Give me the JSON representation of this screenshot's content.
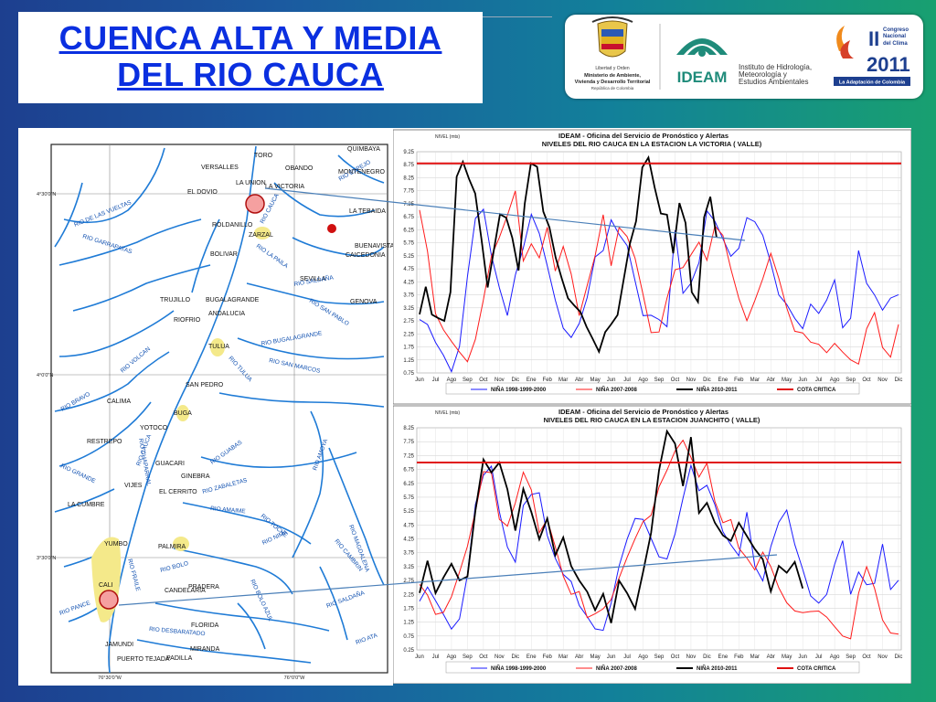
{
  "slide": {
    "title_line1": "CUENCA  ALTA Y MEDIA",
    "title_line2": "DEL RIO  CAUCA"
  },
  "logos": {
    "ministry": [
      "Libertad y Orden",
      "Ministerio de Ambiente,",
      "Vivienda y Desarrollo Territorial",
      "República de Colombia"
    ],
    "ideam_name": "IDEAM",
    "ideam_sub": [
      "Instituto de Hidrología,",
      "Meteorología y",
      "Estudios Ambientales"
    ],
    "congress": [
      "II",
      "Congreso",
      "Nacional",
      "del Clima",
      "2011",
      "La Adaptación de Colombia"
    ]
  },
  "map": {
    "coords": [
      "4°30'0\"N",
      "4°0'0\"N",
      "3°30'0\"N",
      "76°30'0\"W",
      "76°0'0\"W"
    ],
    "towns": [
      "TORO",
      "QUIMBAYA",
      "VERSALLES",
      "OBANDO",
      "MONTENEGRO",
      "LA UNION",
      "LA VICTORIA",
      "EL DOVIO",
      "LA TEBAIDA",
      "ROLDANILLO",
      "ZARZAL",
      "BUENAVISTA",
      "CAICEDONIA",
      "BOLIVAR",
      "SEVILLA",
      "TRUJILLO",
      "BUGALAGRANDE",
      "ANDALUCIA",
      "RIOFRIO",
      "GENOVA",
      "TULUA",
      "SAN PEDRO",
      "CALIMA",
      "BUGA",
      "YOTOCO",
      "RESTREPO",
      "GUACARI",
      "GINEBRA",
      "VIJES",
      "EL CERRITO",
      "LA CUMBRE",
      "YUMBO",
      "PALMIRA",
      "CALI",
      "CANDELARIA",
      "PRADERA",
      "FLORIDA",
      "JAMUNDI",
      "MIRANDA",
      "PUERTO TEJADA",
      "PADILLA"
    ],
    "rivers": [
      "RIO DE LAS VUELTAS",
      "RIO ESPEJO",
      "RIO GARRAPATAS",
      "RIO LA PAILA",
      "RIO CAUCA",
      "RIO SALDAÑA",
      "RIO SAN PABLO",
      "RIO BUGALAGRANDE",
      "RIO VOLCAN",
      "RIO TULUA",
      "RIO SAN MARCOS",
      "RIO BRAVO",
      "RIO CAUCA",
      "RIO AMOYA",
      "RIO GUABAS",
      "RIO GRANDE",
      "RIO ZABALETAS",
      "RIO AMAIME",
      "RIO TOCHE",
      "RIO NIMA",
      "RIO CAMBRIN",
      "RIO MAGDALENA",
      "RIO BOLO",
      "RIO BOLO AZUL",
      "RIO PANCE",
      "RIO DESBARATADO",
      "RIO SALDAÑA",
      "RIO ATA",
      "RIO FRAILE",
      "RIO CHAPARRAL"
    ]
  },
  "charts": {
    "legend": [
      "NIÑA 1998-1999-2000",
      "NIÑA 2007-2008",
      "NIÑA 2010-2011",
      "COTA CRITICA"
    ],
    "x_ticks": [
      "Jun",
      "Jul",
      "Ago",
      "Sep",
      "Oct",
      "Nov",
      "Dic",
      "Ene",
      "Feb",
      "Mar",
      "Abr",
      "May",
      "Jun",
      "Jul",
      "Ago",
      "Sep",
      "Oct",
      "Nov",
      "Dic",
      "Ene",
      "Feb",
      "Mar",
      "Abr",
      "May",
      "Jun",
      "Jul",
      "Ago",
      "Sep",
      "Oct",
      "Nov",
      "Dic"
    ]
  },
  "chart_data": [
    {
      "type": "line",
      "title": "IDEAM - Oficina del Servicio de Pronóstico y Alertas",
      "subtitle": "NIVELES DEL RIO CAUCA EN LA ESTACION LA VICTORIA ( VALLE)",
      "ylabel": "NIVEL (mts)",
      "ylim": [
        0.75,
        9.25
      ],
      "y_ticks": [
        "9.25",
        "8.75",
        "8.25",
        "7.75",
        "7.25",
        "6.75",
        "6.25",
        "5.75",
        "5.25",
        "4.75",
        "4.25",
        "3.75",
        "3.25",
        "2.75",
        "2.25",
        "1.75",
        "1.25",
        "0.75"
      ],
      "critical_level": 8.8,
      "series": [
        {
          "name": "NIÑA 1998-1999-2000",
          "color": "#1a1aff",
          "values": [
            2.8,
            2.4,
            1.7,
            1.4,
            1.0,
            2.0,
            4.5,
            6.5,
            6.8,
            5.2,
            4.2,
            3.2,
            4.6,
            5.4,
            6.6,
            6.0,
            5.0,
            3.8,
            2.6,
            2.0,
            2.4,
            3.5,
            5.3,
            5.7,
            6.8,
            6.0,
            5.4,
            4.1,
            3.0,
            3.2,
            3.0,
            2.5,
            6.0,
            3.6,
            4.2,
            5.2,
            7.2,
            6.6,
            5.7,
            5.0,
            5.5,
            6.9,
            6.8,
            6.1,
            4.8,
            3.5,
            3.3,
            3.0,
            2.7,
            3.5,
            2.9,
            3.3,
            4.2,
            2.6,
            3.1,
            5.6,
            4.1,
            3.5,
            3.0,
            3.7,
            4.0
          ]
        },
        {
          "name": "NIÑA 2007-2008",
          "color": "#ff1a1a",
          "values": [
            6.8,
            5.2,
            3.0,
            2.6,
            2.2,
            1.6,
            1.0,
            1.8,
            3.5,
            5.4,
            6.2,
            6.9,
            7.6,
            4.8,
            5.6,
            5.3,
            6.6,
            4.8,
            5.5,
            4.3,
            2.8,
            4.2,
            5.5,
            7.0,
            4.8,
            6.1,
            5.8,
            5.2,
            4.0,
            2.5,
            2.3,
            3.4,
            4.5,
            4.8,
            5.5,
            6.0,
            5.1,
            6.2,
            5.8,
            4.7,
            3.8,
            3.0,
            3.6,
            4.2,
            5.1,
            4.3,
            3.4,
            2.6,
            2.4,
            1.8,
            1.6,
            1.4,
            2.0,
            1.8,
            1.4,
            1.0,
            2.2,
            2.9,
            1.8,
            1.6,
            2.8
          ]
        },
        {
          "name": "NIÑA 2010-2011",
          "color": "#000000",
          "values": [
            3.0,
            4.2,
            3.1,
            2.8,
            2.6,
            3.8,
            8.4,
            9.0,
            8.2,
            7.5,
            5.8,
            4.1,
            5.6,
            6.9,
            6.6,
            5.8,
            4.7,
            7.4,
            8.9,
            8.6,
            6.8,
            6.3,
            5.3,
            4.5,
            3.6,
            3.2,
            3.0,
            2.6,
            2.2,
            1.6,
            2.2,
            2.5,
            3.0,
            4.5,
            5.8,
            6.5,
            8.5,
            9.0,
            8.0,
            7.0,
            6.8,
            5.2,
            7.2,
            6.6,
            4.0,
            3.5,
            6.6,
            7.4,
            6.0
          ]
        }
      ]
    },
    {
      "type": "line",
      "title": "IDEAM - Oficina del Servicio de Pronóstico y Alertas",
      "subtitle": "NIVELES DEL RIO CAUCA EN LA ESTACION JUANCHITO ( VALLE)",
      "ylabel": "NIVEL (mts)",
      "ylim": [
        0.25,
        8.25
      ],
      "y_ticks": [
        "8.25",
        "7.75",
        "7.25",
        "6.75",
        "6.25",
        "5.75",
        "5.25",
        "4.75",
        "4.25",
        "3.75",
        "3.25",
        "2.75",
        "2.25",
        "1.75",
        "1.25",
        "0.75",
        "0.25"
      ],
      "critical_level": 7.0,
      "series": [
        {
          "name": "NIÑA 1998-1999-2000",
          "color": "#1a1aff",
          "values": [
            2.0,
            2.3,
            1.8,
            1.5,
            1.2,
            1.6,
            3.0,
            5.3,
            6.3,
            6.8,
            5.4,
            4.2,
            3.5,
            5.3,
            5.6,
            5.8,
            4.5,
            3.8,
            3.1,
            2.6,
            1.6,
            1.3,
            1.1,
            1.2,
            2.1,
            3.2,
            4.0,
            4.8,
            5.0,
            4.5,
            3.8,
            3.5,
            4.2,
            5.5,
            6.9,
            6.2,
            6.4,
            5.5,
            4.3,
            3.8,
            3.6,
            5.4,
            3.5,
            2.8,
            3.8,
            4.6,
            5.2,
            4.2,
            3.4,
            2.3,
            1.8,
            2.0,
            3.2,
            4.3,
            2.5,
            3.2,
            2.5,
            2.4,
            3.9,
            2.5,
            3.0
          ]
        },
        {
          "name": "NIÑA 2007-2008",
          "color": "#ff1a1a",
          "values": [
            2.4,
            2.0,
            1.5,
            1.8,
            2.4,
            3.1,
            3.8,
            5.0,
            6.6,
            6.8,
            5.2,
            4.8,
            5.4,
            6.4,
            5.9,
            4.6,
            5.2,
            4.1,
            2.8,
            2.0,
            2.2,
            1.5,
            1.8,
            1.9,
            2.0,
            2.6,
            3.4,
            4.3,
            5.1,
            5.3,
            6.1,
            6.5,
            7.2,
            7.8,
            7.4,
            6.7,
            7.0,
            5.4,
            4.6,
            4.9,
            4.1,
            3.8,
            3.2,
            3.6,
            3.0,
            2.4,
            2.1,
            1.9,
            1.7,
            1.5,
            1.4,
            1.3,
            1.2,
            1.0,
            0.8,
            2.2,
            3.0,
            2.3,
            1.4,
            1.1,
            1.0
          ]
        },
        {
          "name": "NIÑA 2010-2011",
          "color": "#000000",
          "values": [
            2.3,
            3.6,
            2.4,
            2.8,
            3.2,
            2.7,
            3.0,
            5.4,
            7.1,
            6.5,
            6.9,
            6.1,
            4.7,
            6.1,
            5.1,
            4.1,
            5.0,
            3.8,
            4.4,
            3.2,
            2.6,
            2.3,
            1.8,
            2.4,
            1.2,
            2.6,
            2.2,
            1.8,
            3.2,
            4.5,
            6.6,
            8.0,
            7.7,
            6.3,
            8.0,
            5.1,
            5.4,
            4.8,
            4.5,
            4.3,
            4.8,
            4.2,
            3.8,
            3.6,
            2.5,
            3.3,
            2.9,
            3.3,
            2.5
          ]
        }
      ]
    }
  ]
}
